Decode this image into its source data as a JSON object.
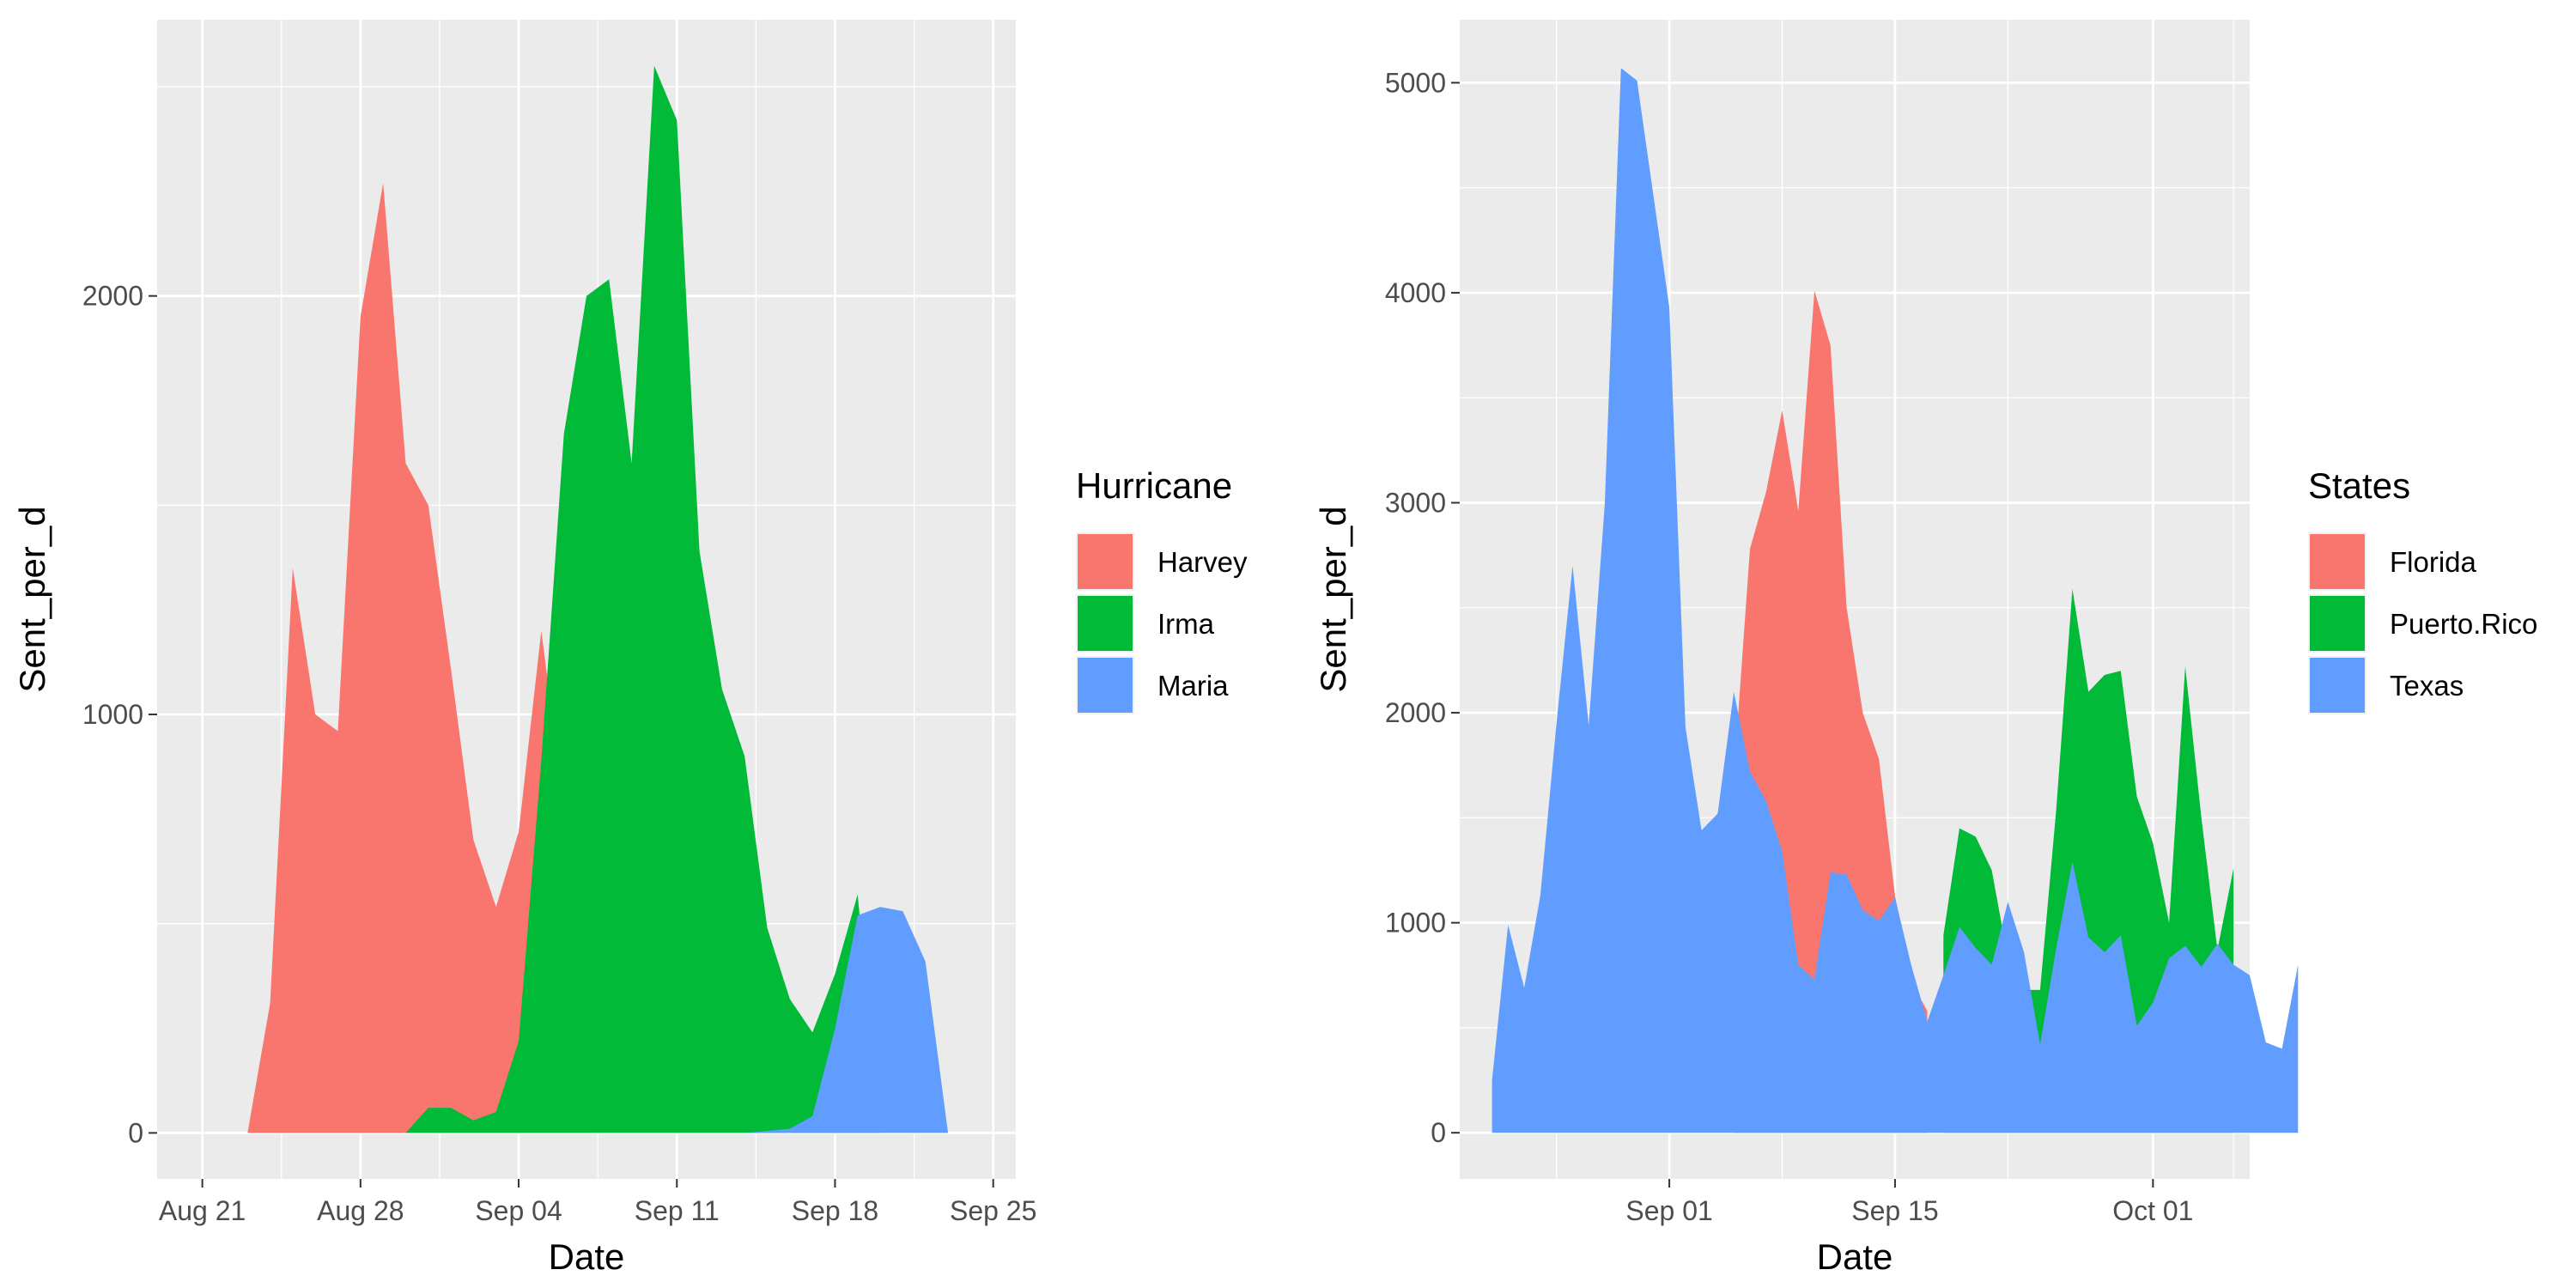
{
  "chart_data": [
    {
      "type": "area",
      "stacked": false,
      "xlabel": "Date",
      "ylabel": "Sent_per_d",
      "xlim": [
        "2017-08-19",
        "2017-09-26"
      ],
      "ylim": [
        -110,
        2660
      ],
      "x_ticks": [
        {
          "date": "2017-08-21",
          "label": "Aug 21"
        },
        {
          "date": "2017-08-28",
          "label": "Aug 28"
        },
        {
          "date": "2017-09-04",
          "label": "Sep 04"
        },
        {
          "date": "2017-09-11",
          "label": "Sep 11"
        },
        {
          "date": "2017-09-18",
          "label": "Sep 18"
        },
        {
          "date": "2017-09-25",
          "label": "Sep 25"
        }
      ],
      "y_ticks": [
        0,
        1000,
        2000
      ],
      "grid": true,
      "legend": {
        "title": "Hurricane",
        "position": "right"
      },
      "series": [
        {
          "name": "Harvey",
          "color": "#F8766D",
          "x": [
            "2017-08-21",
            "2017-08-22",
            "2017-08-23",
            "2017-08-24",
            "2017-08-25",
            "2017-08-26",
            "2017-08-27",
            "2017-08-28",
            "2017-08-29",
            "2017-08-30",
            "2017-08-31",
            "2017-09-01",
            "2017-09-02",
            "2017-09-03",
            "2017-09-04",
            "2017-09-05",
            "2017-09-06",
            "2017-09-07"
          ],
          "y": [
            0,
            0,
            0,
            310,
            1350,
            1000,
            960,
            1950,
            2270,
            1600,
            1500,
            1110,
            700,
            540,
            720,
            1200,
            780,
            0
          ]
        },
        {
          "name": "Irma",
          "color": "#00BA38",
          "x": [
            "2017-08-30",
            "2017-08-31",
            "2017-09-01",
            "2017-09-02",
            "2017-09-03",
            "2017-09-04",
            "2017-09-05",
            "2017-09-06",
            "2017-09-07",
            "2017-09-08",
            "2017-09-09",
            "2017-09-10",
            "2017-09-11",
            "2017-09-12",
            "2017-09-13",
            "2017-09-14",
            "2017-09-15",
            "2017-09-16",
            "2017-09-17",
            "2017-09-18",
            "2017-09-19",
            "2017-09-20"
          ],
          "y": [
            0,
            60,
            60,
            30,
            50,
            220,
            890,
            1670,
            2000,
            2040,
            1600,
            2550,
            2420,
            1390,
            1060,
            900,
            490,
            320,
            240,
            380,
            570,
            0
          ]
        },
        {
          "name": "Maria",
          "color": "#619CFF",
          "x": [
            "2017-09-14",
            "2017-09-15",
            "2017-09-16",
            "2017-09-17",
            "2017-09-18",
            "2017-09-19",
            "2017-09-20",
            "2017-09-21",
            "2017-09-22",
            "2017-09-23",
            "2017-09-24"
          ],
          "y": [
            0,
            5,
            10,
            40,
            250,
            520,
            540,
            530,
            410,
            0,
            0
          ]
        }
      ]
    },
    {
      "type": "area",
      "stacked": false,
      "xlabel": "Date",
      "ylabel": "Sent_per_d",
      "xlim": [
        "2017-08-19",
        "2017-10-07"
      ],
      "ylim": [
        -220,
        5300
      ],
      "x_ticks": [
        {
          "date": "2017-09-01",
          "label": "Sep 01"
        },
        {
          "date": "2017-09-15",
          "label": "Sep 15"
        },
        {
          "date": "2017-10-01",
          "label": "Oct 01"
        }
      ],
      "y_ticks": [
        0,
        1000,
        2000,
        3000,
        4000,
        5000
      ],
      "grid": true,
      "legend": {
        "title": "States",
        "position": "right"
      },
      "series": [
        {
          "name": "Florida",
          "color": "#F8766D",
          "x": [
            "2017-09-05",
            "2017-09-06",
            "2017-09-07",
            "2017-09-08",
            "2017-09-09",
            "2017-09-10",
            "2017-09-11",
            "2017-09-12",
            "2017-09-13",
            "2017-09-14",
            "2017-09-15",
            "2017-09-16",
            "2017-09-17"
          ],
          "y": [
            1700,
            2780,
            3050,
            3440,
            2960,
            4010,
            3750,
            2500,
            2000,
            1780,
            1130,
            720,
            580
          ]
        },
        {
          "name": "Puerto.Rico",
          "color": "#00BA38",
          "x": [
            "2017-09-18",
            "2017-09-19",
            "2017-09-20",
            "2017-09-21",
            "2017-09-22",
            "2017-09-23",
            "2017-09-24",
            "2017-09-25",
            "2017-09-26",
            "2017-09-27",
            "2017-09-28",
            "2017-09-29",
            "2017-09-30",
            "2017-10-01",
            "2017-10-02",
            "2017-10-03",
            "2017-10-04",
            "2017-10-05",
            "2017-10-06"
          ],
          "y": [
            940,
            1450,
            1410,
            1250,
            830,
            680,
            680,
            1540,
            2590,
            2100,
            2180,
            2200,
            1600,
            1380,
            1000,
            2220,
            1500,
            870,
            1260
          ]
        },
        {
          "name": "Texas",
          "color": "#619CFF",
          "x": [
            "2017-08-21",
            "2017-08-22",
            "2017-08-23",
            "2017-08-24",
            "2017-08-25",
            "2017-08-26",
            "2017-08-27",
            "2017-08-28",
            "2017-08-29",
            "2017-08-30",
            "2017-08-31",
            "2017-09-01",
            "2017-09-02",
            "2017-09-03",
            "2017-09-04",
            "2017-09-05",
            "2017-09-06",
            "2017-09-07",
            "2017-09-08",
            "2017-09-09",
            "2017-09-10",
            "2017-09-11",
            "2017-09-12",
            "2017-09-13",
            "2017-09-14",
            "2017-09-15",
            "2017-09-16",
            "2017-09-17",
            "2017-09-18",
            "2017-09-19",
            "2017-09-20",
            "2017-09-21",
            "2017-09-22",
            "2017-09-23",
            "2017-09-24",
            "2017-09-25",
            "2017-09-26",
            "2017-09-27",
            "2017-09-28",
            "2017-09-29",
            "2017-09-30",
            "2017-10-01",
            "2017-10-02",
            "2017-10-03",
            "2017-10-04",
            "2017-10-05",
            "2017-10-06",
            "2017-10-07",
            "2017-10-08",
            "2017-10-09",
            "2017-10-10"
          ],
          "y": [
            250,
            990,
            690,
            1130,
            1950,
            2700,
            1940,
            3000,
            5070,
            5010,
            4470,
            3930,
            1930,
            1440,
            1520,
            2100,
            1720,
            1580,
            1340,
            800,
            730,
            1240,
            1230,
            1060,
            1010,
            1120,
            800,
            530,
            750,
            980,
            880,
            800,
            1100,
            860,
            420,
            880,
            1290,
            930,
            860,
            940,
            510,
            620,
            830,
            890,
            790,
            900,
            800,
            750,
            430,
            400,
            800
          ]
        }
      ]
    }
  ]
}
